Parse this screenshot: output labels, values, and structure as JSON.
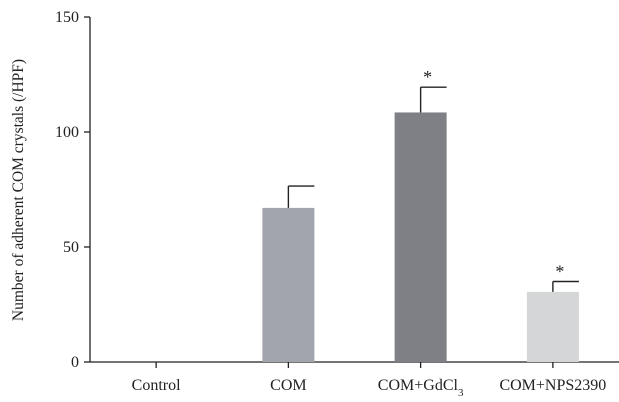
{
  "chart_data": {
    "type": "bar",
    "title": "",
    "xlabel": "",
    "ylabel": "Number of adherent COM crystals (/HPF)",
    "ylim": [
      0,
      150
    ],
    "yticks": [
      0,
      50,
      100,
      150
    ],
    "grid": false,
    "categories": [
      {
        "base": "Control",
        "sub": ""
      },
      {
        "base": "COM",
        "sub": ""
      },
      {
        "base": "COM+GdCl",
        "sub": "3"
      },
      {
        "base": "COM+NPS2390",
        "sub": ""
      }
    ],
    "values": [
      0,
      67,
      108.5,
      30.5
    ],
    "errors": [
      0,
      9.5,
      11,
      4.5
    ],
    "significance": [
      "",
      "",
      "*",
      "*"
    ],
    "colors": [
      "#ffffff",
      "#a2a5ad",
      "#7f8085",
      "#d5d6d8"
    ]
  }
}
